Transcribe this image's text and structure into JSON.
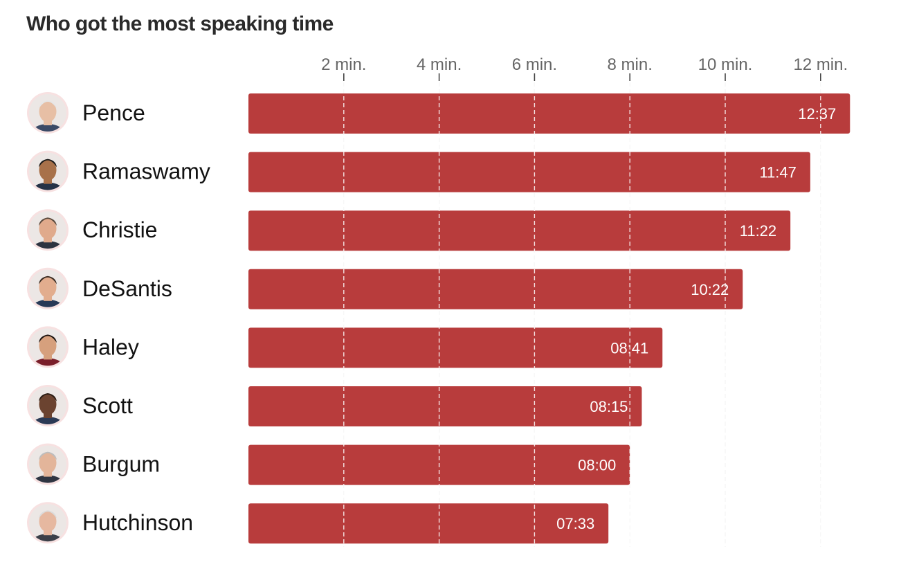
{
  "chart_data": {
    "type": "bar",
    "orientation": "horizontal",
    "title": "Who got the most speaking time",
    "xlabel": "",
    "ylabel": "",
    "unit": "minutes",
    "xlim": [
      0,
      12.8
    ],
    "xticks": [
      {
        "value": 2,
        "label": "2 min."
      },
      {
        "value": 4,
        "label": "4 min."
      },
      {
        "value": 6,
        "label": "6 min."
      },
      {
        "value": 8,
        "label": "8 min."
      },
      {
        "value": 10,
        "label": "10 min."
      },
      {
        "value": 12,
        "label": "12 min."
      }
    ],
    "grid": true,
    "bar_color": "#b83c3c",
    "label_color": "#ffffff",
    "categories": [
      "Pence",
      "Ramaswamy",
      "Christie",
      "DeSantis",
      "Haley",
      "Scott",
      "Burgum",
      "Hutchinson"
    ],
    "values": [
      12.6167,
      11.7833,
      11.3667,
      10.3667,
      8.6833,
      8.25,
      8.0,
      7.55
    ],
    "value_labels": [
      "12:37",
      "11:47",
      "11:22",
      "10:22",
      "08:41",
      "08:15",
      "08:00",
      "07:33"
    ],
    "avatars": [
      {
        "icon": "pence-portrait",
        "skin": "#e7bfa5",
        "hair": "#e6e6e6",
        "shirt": "#3b4a66"
      },
      {
        "icon": "ramaswamy-portrait",
        "skin": "#a8714a",
        "hair": "#1a1a1a",
        "shirt": "#253246"
      },
      {
        "icon": "christie-portrait",
        "skin": "#e0aa8c",
        "hair": "#5a4a3e",
        "shirt": "#2d3340"
      },
      {
        "icon": "desantis-portrait",
        "skin": "#e2ad8e",
        "hair": "#3a2c22",
        "shirt": "#283a57"
      },
      {
        "icon": "haley-portrait",
        "skin": "#d6a07d",
        "hair": "#1d1410",
        "shirt": "#7a1e2a"
      },
      {
        "icon": "scott-portrait",
        "skin": "#6b4330",
        "hair": "#2a1c14",
        "shirt": "#2b3a55"
      },
      {
        "icon": "burgum-portrait",
        "skin": "#e3b59a",
        "hair": "#bdbdbd",
        "shirt": "#2f3542"
      },
      {
        "icon": "hutchinson-portrait",
        "skin": "#e6b8a0",
        "hair": "#dcdcdc",
        "shirt": "#3b3f48"
      }
    ]
  }
}
